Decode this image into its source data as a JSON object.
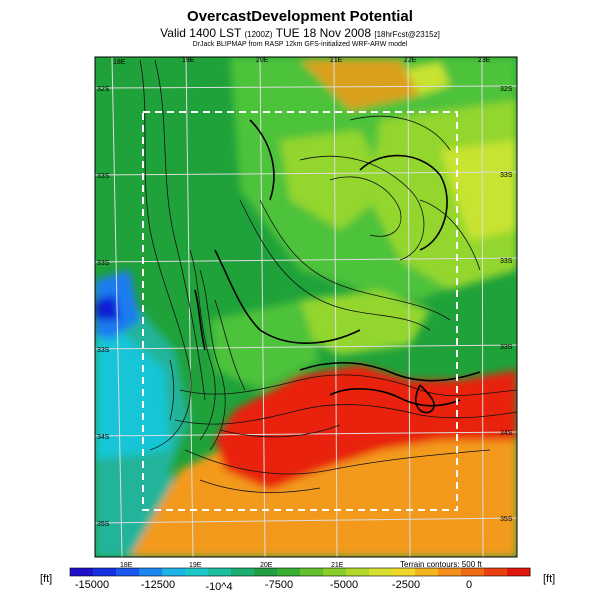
{
  "header": {
    "title": "OvercastDevelopment Potential",
    "valid_main": "Valid 1400 LST",
    "valid_small": "(1200Z)",
    "valid_date": "TUE 18 Nov 2008",
    "fcst": "[18hrFcst@2315z]",
    "subtitle": "DrJack BLIPMAP from RASP 12km GFS-initialized WRF-ARW model"
  },
  "map": {
    "lon_labels_top": [
      "18E",
      "19E",
      "20E",
      "21E",
      "22E",
      "23E"
    ],
    "lon_labels_bottom": [
      "18E",
      "19E",
      "20E",
      "21E"
    ],
    "lat_labels_left": [
      "32S",
      "33S",
      "33S",
      "33S",
      "34S",
      "35S"
    ],
    "lat_labels_right": [
      "32S",
      "33S",
      "33S",
      "33S",
      "34S",
      "35S"
    ],
    "terrain_note": "Terrain contours: 500 ft",
    "colors": {
      "deep_blue": "#0a1fd6",
      "blue": "#1e7cf0",
      "cyan": "#19c6d6",
      "teal": "#20b49a",
      "green": "#1fa23a",
      "mid_green": "#4ec23a",
      "light_green": "#93d62e",
      "yellow_green": "#c8e330",
      "orange": "#f39a1a",
      "red": "#e8200c"
    }
  },
  "colorbar": {
    "unit_left": "[ft]",
    "unit_right": "[ft]",
    "tick_labels": [
      "-15000",
      "-12500",
      "-10^4",
      "-7500",
      "-5000",
      "-2500",
      "0"
    ],
    "min": -15000,
    "max": 2500,
    "colors": [
      "#2010c8",
      "#1630e0",
      "#1c58ee",
      "#1e86f2",
      "#1eb4e8",
      "#1cc8c8",
      "#1cc0a0",
      "#1cb070",
      "#20a040",
      "#3aae30",
      "#62c02c",
      "#8ace2c",
      "#b2d82c",
      "#d6e030",
      "#f0d82a",
      "#f4b420",
      "#f4901a",
      "#f06a14",
      "#ea4010",
      "#e0180c"
    ]
  }
}
